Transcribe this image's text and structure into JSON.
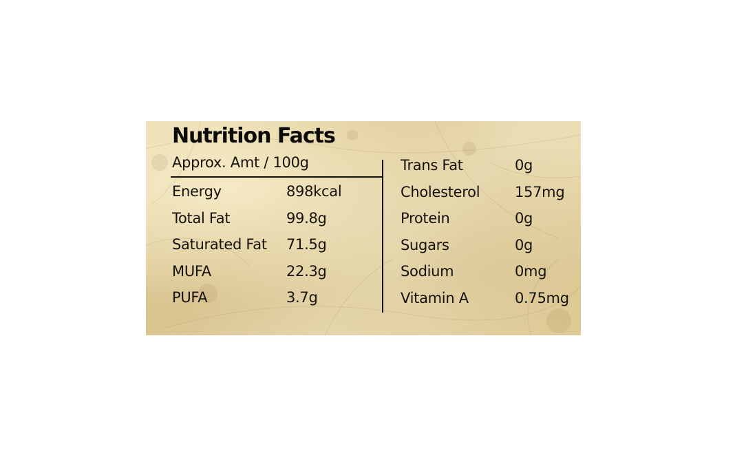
{
  "title": "Nutrition Facts",
  "serving": "Approx. Amt / 100g",
  "left_column": [
    {
      "name": "Energy",
      "value": "898kcal"
    },
    {
      "name": "Total Fat",
      "value": "99.8g"
    },
    {
      "name": "Saturated Fat",
      "value": "71.5g"
    },
    {
      "name": "MUFA",
      "value": "22.3g"
    },
    {
      "name": "PUFA",
      "value": "3.7g"
    }
  ],
  "right_column": [
    {
      "name": "Trans Fat",
      "value": "0g"
    },
    {
      "name": "Cholesterol",
      "value": "157mg"
    },
    {
      "name": "Protein",
      "value": "0g"
    },
    {
      "name": "Sugars",
      "value": "0g"
    },
    {
      "name": "Sodium",
      "value": "0mg"
    },
    {
      "name": "Vitamin A",
      "value": "0.75mg"
    }
  ],
  "colors": {
    "background": "#e8d8aa",
    "text": "#15120b"
  }
}
